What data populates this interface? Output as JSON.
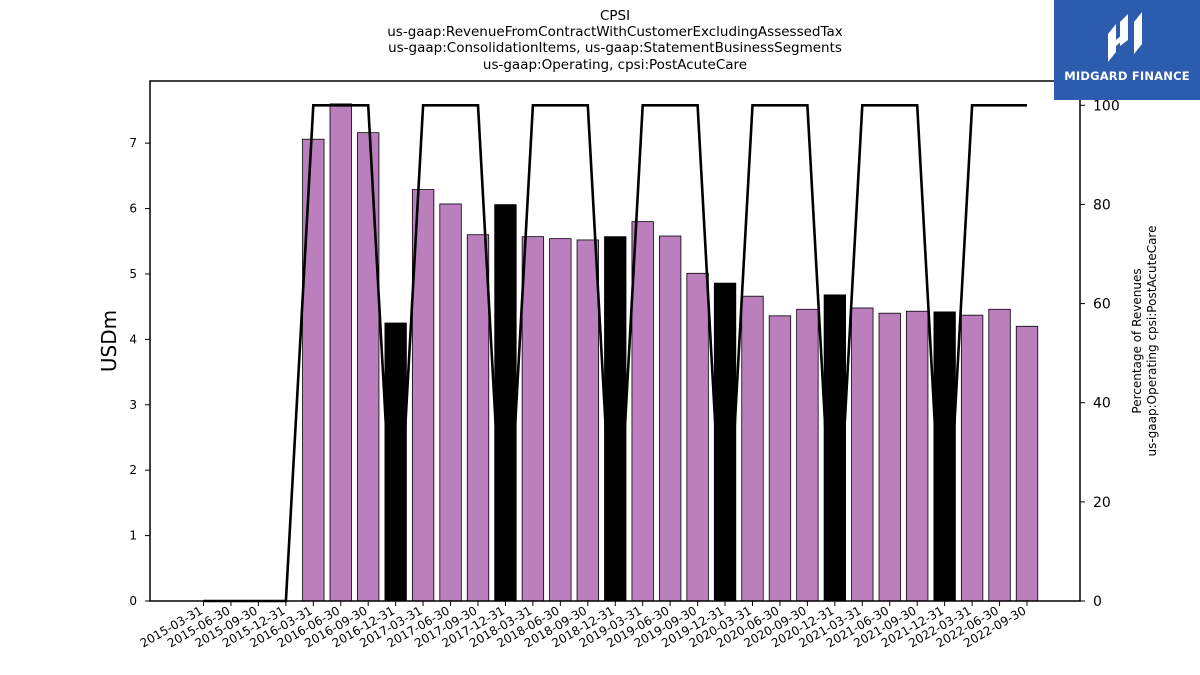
{
  "title": {
    "line1": "CPSI",
    "line2": "us-gaap:RevenueFromContractWithCustomerExcludingAssessedTax",
    "line3": "us-gaap:ConsolidationItems, us-gaap:StatementBusinessSegments",
    "line4": "us-gaap:Operating, cpsi:PostAcuteCare"
  },
  "logo": {
    "text": "MIDGARD FINANCE",
    "icon": "midgard-logo-icon",
    "bg_color": "#2b5cad"
  },
  "chart_data": {
    "type": "bar",
    "ylabel": "USDm",
    "y2label_line1": "Percentage of Revenues",
    "y2label_line2": "us-gaap:Operating cpsi:PostAcuteCare",
    "ylim": [
      0,
      7.95
    ],
    "y2lim": [
      0,
      104.9
    ],
    "yticks": [
      0,
      1,
      2,
      3,
      4,
      5,
      6,
      7
    ],
    "y2ticks": [
      0,
      20,
      40,
      60,
      80,
      100
    ],
    "categories": [
      "2015-03-31",
      "2015-06-30",
      "2015-09-30",
      "2015-12-31",
      "2016-03-31",
      "2016-06-30",
      "2016-09-30",
      "2016-12-31",
      "2017-03-31",
      "2017-06-30",
      "2017-09-30",
      "2017-12-31",
      "2018-03-31",
      "2018-06-30",
      "2018-09-30",
      "2018-12-31",
      "2019-03-31",
      "2019-06-30",
      "2019-09-30",
      "2019-12-31",
      "2020-03-31",
      "2020-06-30",
      "2020-09-30",
      "2020-12-31",
      "2021-03-31",
      "2021-06-30",
      "2021-09-30",
      "2021-12-31",
      "2022-03-31",
      "2022-06-30",
      "2022-09-30"
    ],
    "series": [
      {
        "type": "bar",
        "values": [
          0,
          0,
          0,
          0,
          7.06,
          7.6,
          7.16,
          4.25,
          6.29,
          6.07,
          5.6,
          6.06,
          5.57,
          5.54,
          5.52,
          5.57,
          5.8,
          5.58,
          5.01,
          4.86,
          4.66,
          4.36,
          4.46,
          4.68,
          4.48,
          4.4,
          4.43,
          4.42,
          4.37,
          4.46,
          4.2
        ],
        "bar_colors": [
          "#bb7fbd",
          "#bb7fbd",
          "#bb7fbd",
          "#bb7fbd",
          "#bb7fbd",
          "#bb7fbd",
          "#bb7fbd",
          "#000000",
          "#bb7fbd",
          "#bb7fbd",
          "#bb7fbd",
          "#000000",
          "#bb7fbd",
          "#bb7fbd",
          "#bb7fbd",
          "#000000",
          "#bb7fbd",
          "#bb7fbd",
          "#bb7fbd",
          "#000000",
          "#bb7fbd",
          "#bb7fbd",
          "#bb7fbd",
          "#000000",
          "#bb7fbd",
          "#bb7fbd",
          "#bb7fbd",
          "#000000",
          "#bb7fbd",
          "#bb7fbd",
          "#bb7fbd"
        ]
      },
      {
        "type": "line",
        "axis": "right",
        "color": "#000000",
        "values": [
          0,
          0,
          0,
          0,
          100,
          100,
          100,
          0,
          100,
          100,
          100,
          0,
          100,
          100,
          100,
          0,
          100,
          100,
          100,
          0,
          100,
          100,
          100,
          0,
          100,
          100,
          100,
          0,
          100,
          100,
          100
        ]
      }
    ]
  }
}
